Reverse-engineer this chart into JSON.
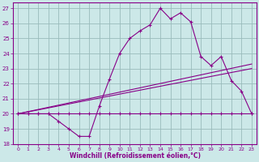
{
  "xlabel": "Windchill (Refroidissement éolien,°C)",
  "xlim": [
    -0.5,
    23.5
  ],
  "ylim": [
    18,
    27.4
  ],
  "yticks": [
    18,
    19,
    20,
    21,
    22,
    23,
    24,
    25,
    26,
    27
  ],
  "xticks": [
    0,
    1,
    2,
    3,
    4,
    5,
    6,
    7,
    8,
    9,
    10,
    11,
    12,
    13,
    14,
    15,
    16,
    17,
    18,
    19,
    20,
    21,
    22,
    23
  ],
  "bg_color": "#cce8e8",
  "line_color": "#880088",
  "grid_color": "#99bbbb",
  "line1_x": [
    0,
    1,
    2,
    3,
    4,
    5,
    6,
    7,
    8,
    9,
    10,
    11,
    12,
    13,
    14,
    15,
    16,
    17,
    18,
    19,
    20,
    21,
    22,
    23
  ],
  "line1_y": [
    20.0,
    20.0,
    20.0,
    20.0,
    19.5,
    19.0,
    18.5,
    18.5,
    20.5,
    22.3,
    24.0,
    25.0,
    25.5,
    25.9,
    27.0,
    26.3,
    26.7,
    26.1,
    23.8,
    23.2,
    23.8,
    22.2,
    21.5,
    20.0
  ],
  "line2_x": [
    0,
    1,
    2,
    3,
    4,
    5,
    6,
    7,
    8,
    9,
    10,
    11,
    12,
    13,
    14,
    15,
    16,
    17,
    18,
    19,
    20,
    21,
    22,
    23
  ],
  "line2_y": [
    20.0,
    20.0,
    20.0,
    20.0,
    20.0,
    20.0,
    20.0,
    20.0,
    20.0,
    20.0,
    20.0,
    20.0,
    20.0,
    20.0,
    20.0,
    20.0,
    20.0,
    20.0,
    20.0,
    20.0,
    20.0,
    20.0,
    20.0,
    20.0
  ],
  "line3_x": [
    0,
    23
  ],
  "line3_y": [
    20.0,
    23.3
  ],
  "line4_x": [
    0,
    23
  ],
  "line4_y": [
    20.0,
    23.0
  ]
}
